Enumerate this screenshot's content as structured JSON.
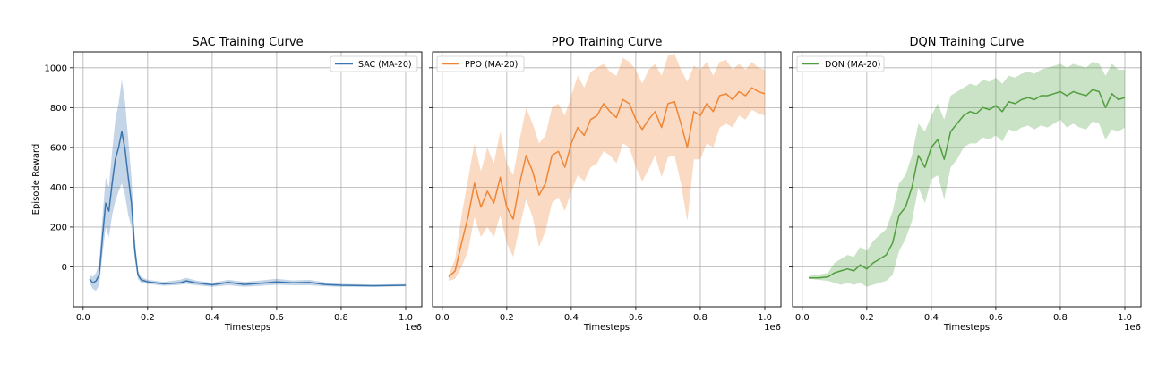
{
  "figure": {
    "colors": {
      "SAC": "#3b75af",
      "PPO": "#ef8636",
      "DQN": "#519e3e",
      "grid": "#b0b0b0",
      "axes": "#000000"
    }
  },
  "chart_data": [
    {
      "type": "line",
      "title": "SAC Training Curve",
      "xlabel": "Timesteps",
      "ylabel": "Episode Reward",
      "x_offset_label": "1e6",
      "xlim": [
        -0.03,
        1.05
      ],
      "ylim": [
        -200,
        1080
      ],
      "xticks": [
        0.0,
        0.2,
        0.4,
        0.6,
        0.8,
        1.0
      ],
      "xtick_labels": [
        "0.0",
        "0.2",
        "0.4",
        "0.6",
        "0.8",
        "1.0"
      ],
      "yticks": [
        0,
        200,
        400,
        600,
        800,
        1000
      ],
      "ytick_labels": [
        "0",
        "200",
        "400",
        "600",
        "800",
        "1000"
      ],
      "grid": true,
      "legend": "upper right",
      "band": "shaded region around the moving average",
      "series": [
        {
          "name": "SAC (MA-20)",
          "color_key": "SAC",
          "x": [
            0.02,
            0.03,
            0.04,
            0.05,
            0.06,
            0.07,
            0.08,
            0.09,
            0.1,
            0.11,
            0.12,
            0.13,
            0.14,
            0.15,
            0.16,
            0.17,
            0.18,
            0.2,
            0.25,
            0.3,
            0.32,
            0.35,
            0.4,
            0.45,
            0.5,
            0.55,
            0.6,
            0.65,
            0.7,
            0.75,
            0.8,
            0.9,
            1.0
          ],
          "y": [
            -60,
            -80,
            -70,
            -40,
            150,
            320,
            280,
            420,
            540,
            600,
            680,
            590,
            450,
            320,
            90,
            -40,
            -65,
            -75,
            -85,
            -80,
            -70,
            -80,
            -90,
            -78,
            -88,
            -82,
            -75,
            -80,
            -78,
            -88,
            -92,
            -95,
            -92
          ],
          "lower": [
            -80,
            -110,
            -120,
            -90,
            60,
            200,
            150,
            260,
            330,
            380,
            420,
            360,
            260,
            200,
            40,
            -60,
            -80,
            -85,
            -95,
            -90,
            -85,
            -92,
            -100,
            -92,
            -100,
            -95,
            -90,
            -92,
            -92,
            -98,
            -100,
            -100,
            -98
          ],
          "upper": [
            -40,
            -50,
            -30,
            20,
            250,
            450,
            400,
            580,
            740,
            820,
            940,
            830,
            640,
            450,
            150,
            -20,
            -50,
            -65,
            -75,
            -65,
            -55,
            -68,
            -80,
            -65,
            -75,
            -68,
            -60,
            -68,
            -65,
            -78,
            -85,
            -88,
            -86
          ]
        }
      ]
    },
    {
      "type": "line",
      "title": "PPO Training Curve",
      "xlabel": "Timesteps",
      "ylabel": "",
      "x_offset_label": "1e6",
      "xlim": [
        -0.03,
        1.05
      ],
      "ylim": [
        -200,
        1080
      ],
      "xticks": [
        0.0,
        0.2,
        0.4,
        0.6,
        0.8,
        1.0
      ],
      "xtick_labels": [
        "0.0",
        "0.2",
        "0.4",
        "0.6",
        "0.8",
        "1.0"
      ],
      "yticks": [
        0,
        200,
        400,
        600,
        800,
        1000
      ],
      "ytick_labels": [],
      "grid": true,
      "legend": "upper left",
      "band": "shaded region around the moving average",
      "series": [
        {
          "name": "PPO (MA-20)",
          "color_key": "PPO",
          "x": [
            0.02,
            0.04,
            0.06,
            0.08,
            0.1,
            0.12,
            0.14,
            0.16,
            0.18,
            0.2,
            0.22,
            0.24,
            0.26,
            0.28,
            0.3,
            0.32,
            0.34,
            0.36,
            0.38,
            0.4,
            0.42,
            0.44,
            0.46,
            0.48,
            0.5,
            0.52,
            0.54,
            0.56,
            0.58,
            0.6,
            0.62,
            0.64,
            0.66,
            0.68,
            0.7,
            0.72,
            0.74,
            0.76,
            0.78,
            0.8,
            0.82,
            0.84,
            0.86,
            0.88,
            0.9,
            0.92,
            0.94,
            0.96,
            0.98,
            1.0
          ],
          "y": [
            -50,
            -20,
            120,
            250,
            420,
            300,
            380,
            320,
            450,
            300,
            240,
            420,
            560,
            480,
            360,
            420,
            560,
            580,
            500,
            620,
            700,
            660,
            740,
            760,
            820,
            780,
            750,
            840,
            820,
            740,
            690,
            740,
            780,
            700,
            820,
            830,
            720,
            600,
            780,
            760,
            820,
            780,
            860,
            870,
            840,
            880,
            860,
            900,
            880,
            870
          ],
          "lower": [
            -70,
            -60,
            0,
            80,
            250,
            150,
            200,
            150,
            260,
            120,
            50,
            200,
            340,
            250,
            100,
            180,
            320,
            350,
            280,
            380,
            460,
            430,
            500,
            520,
            580,
            560,
            520,
            620,
            600,
            500,
            430,
            490,
            560,
            450,
            550,
            560,
            420,
            230,
            540,
            540,
            620,
            600,
            700,
            720,
            700,
            760,
            740,
            790,
            770,
            760
          ],
          "upper": [
            -40,
            40,
            260,
            440,
            620,
            480,
            600,
            520,
            680,
            520,
            460,
            640,
            800,
            720,
            620,
            660,
            800,
            820,
            760,
            860,
            960,
            900,
            980,
            1000,
            1020,
            980,
            960,
            1050,
            1030,
            990,
            920,
            990,
            1020,
            960,
            1060,
            1070,
            990,
            930,
            1010,
            990,
            1030,
            960,
            1030,
            1040,
            990,
            1020,
            990,
            1030,
            1000,
            990
          ]
        }
      ]
    },
    {
      "type": "line",
      "title": "DQN Training Curve",
      "xlabel": "Timesteps",
      "ylabel": "",
      "x_offset_label": "1e6",
      "xlim": [
        -0.03,
        1.05
      ],
      "ylim": [
        -200,
        1080
      ],
      "xticks": [
        0.0,
        0.2,
        0.4,
        0.6,
        0.8,
        1.0
      ],
      "xtick_labels": [
        "0.0",
        "0.2",
        "0.4",
        "0.6",
        "0.8",
        "1.0"
      ],
      "yticks": [
        0,
        200,
        400,
        600,
        800,
        1000
      ],
      "ytick_labels": [],
      "grid": true,
      "legend": "upper left",
      "band": "shaded region around the moving average",
      "series": [
        {
          "name": "DQN (MA-20)",
          "color_key": "DQN",
          "x": [
            0.02,
            0.05,
            0.08,
            0.1,
            0.12,
            0.14,
            0.16,
            0.18,
            0.2,
            0.22,
            0.24,
            0.26,
            0.28,
            0.3,
            0.32,
            0.34,
            0.36,
            0.38,
            0.4,
            0.42,
            0.44,
            0.46,
            0.48,
            0.5,
            0.52,
            0.54,
            0.56,
            0.58,
            0.6,
            0.62,
            0.64,
            0.66,
            0.68,
            0.7,
            0.72,
            0.74,
            0.76,
            0.78,
            0.8,
            0.82,
            0.84,
            0.86,
            0.88,
            0.9,
            0.92,
            0.94,
            0.96,
            0.98,
            1.0
          ],
          "y": [
            -55,
            -55,
            -50,
            -30,
            -20,
            -10,
            -20,
            10,
            -10,
            20,
            40,
            60,
            120,
            260,
            300,
            400,
            560,
            500,
            600,
            640,
            540,
            680,
            720,
            760,
            780,
            770,
            800,
            790,
            810,
            780,
            830,
            820,
            840,
            850,
            840,
            860,
            860,
            870,
            880,
            860,
            880,
            870,
            860,
            890,
            880,
            800,
            870,
            840,
            850
          ],
          "lower": [
            -60,
            -65,
            -70,
            -80,
            -90,
            -80,
            -90,
            -80,
            -100,
            -90,
            -80,
            -70,
            -40,
            80,
            140,
            230,
            400,
            320,
            440,
            460,
            340,
            500,
            540,
            600,
            620,
            620,
            650,
            640,
            660,
            630,
            690,
            680,
            700,
            710,
            690,
            710,
            700,
            720,
            740,
            700,
            720,
            700,
            690,
            730,
            720,
            640,
            690,
            680,
            700
          ],
          "upper": [
            -45,
            -40,
            -30,
            20,
            40,
            60,
            50,
            100,
            80,
            130,
            160,
            190,
            280,
            420,
            460,
            560,
            720,
            680,
            760,
            820,
            740,
            860,
            880,
            900,
            920,
            910,
            940,
            930,
            950,
            920,
            960,
            950,
            970,
            980,
            970,
            990,
            1000,
            1010,
            1020,
            1000,
            1020,
            1010,
            1000,
            1030,
            1020,
            960,
            1020,
            990,
            990
          ]
        }
      ]
    }
  ]
}
